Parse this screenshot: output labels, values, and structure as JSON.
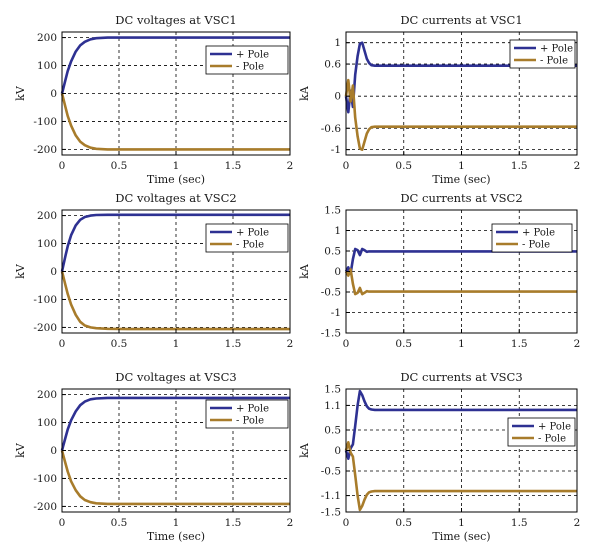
{
  "figure": {
    "background": "#ffffff"
  },
  "style": {
    "pos_color": "#2e3192",
    "neg_color": "#a87c2b",
    "grid_color": "#000000"
  },
  "chart_data": [
    {
      "type": "line",
      "title": "DC voltages at VSC1",
      "xlabel": "Time (sec)",
      "ylabel": "kV",
      "xlim": [
        0,
        2
      ],
      "ylim": [
        -220,
        220
      ],
      "xticks": [
        0,
        0.5,
        1,
        1.5,
        2
      ],
      "xtick_labels": [
        "0",
        "0.5",
        "1",
        "1.5",
        "2"
      ],
      "yticks": [
        -200,
        -100,
        0,
        100,
        200
      ],
      "ytick_labels": [
        "-200",
        "-100",
        "0",
        "100",
        "200"
      ],
      "grid": true,
      "legend": "top-right",
      "series": [
        {
          "name": "+ Pole",
          "x": [
            0,
            0.01,
            0.03,
            0.05,
            0.08,
            0.12,
            0.16,
            0.2,
            0.25,
            0.3,
            0.4,
            0.6,
            1.0,
            1.5,
            2.0
          ],
          "y": [
            0,
            15,
            48,
            80,
            115,
            150,
            172,
            185,
            194,
            198,
            200,
            200,
            200,
            200,
            200
          ]
        },
        {
          "name": "- Pole",
          "x": [
            0,
            0.01,
            0.03,
            0.05,
            0.08,
            0.12,
            0.16,
            0.2,
            0.25,
            0.3,
            0.4,
            0.6,
            1.0,
            1.5,
            2.0
          ],
          "y": [
            0,
            -15,
            -48,
            -80,
            -115,
            -150,
            -172,
            -185,
            -194,
            -198,
            -200,
            -200,
            -200,
            -200,
            -200
          ]
        }
      ]
    },
    {
      "type": "line",
      "title": "DC currents at VSC1",
      "xlabel": "Time (sec)",
      "ylabel": "kA",
      "xlim": [
        0,
        2
      ],
      "ylim": [
        -1.1,
        1.2
      ],
      "xticks": [
        0,
        0.5,
        1,
        1.5,
        2
      ],
      "xtick_labels": [
        "0",
        "0.5",
        "1",
        "1.5",
        "2"
      ],
      "yticks": [
        -1,
        -0.6,
        0,
        0.6,
        1
      ],
      "ytick_labels": [
        "-1",
        "-0.6",
        "0",
        "0.6",
        "1"
      ],
      "grid": true,
      "legend": "top-right",
      "series": [
        {
          "name": "+ Pole",
          "x": [
            0,
            0.02,
            0.04,
            0.06,
            0.08,
            0.1,
            0.12,
            0.14,
            0.16,
            0.18,
            0.2,
            0.22,
            0.25,
            0.3,
            0.4,
            1.0,
            2.0
          ],
          "y": [
            0,
            -0.3,
            0.1,
            -0.2,
            0.4,
            0.75,
            0.98,
            1.0,
            0.85,
            0.7,
            0.62,
            0.58,
            0.57,
            0.57,
            0.57,
            0.57,
            0.57
          ]
        },
        {
          "name": "- Pole",
          "x": [
            0,
            0.02,
            0.04,
            0.06,
            0.08,
            0.1,
            0.12,
            0.14,
            0.16,
            0.18,
            0.2,
            0.22,
            0.25,
            0.3,
            0.4,
            1.0,
            2.0
          ],
          "y": [
            0,
            0.3,
            -0.1,
            0.2,
            -0.4,
            -0.75,
            -0.98,
            -1.0,
            -0.85,
            -0.7,
            -0.62,
            -0.58,
            -0.57,
            -0.57,
            -0.57,
            -0.57,
            -0.57
          ]
        }
      ]
    },
    {
      "type": "line",
      "title": "DC voltages at VSC2",
      "xlabel": "",
      "ylabel": "kV",
      "xlim": [
        0,
        2
      ],
      "ylim": [
        -220,
        220
      ],
      "xticks": [
        0,
        0.5,
        1,
        1.5,
        2
      ],
      "xtick_labels": [
        "0",
        "0.5",
        "1",
        "1.5",
        "2"
      ],
      "yticks": [
        -200,
        -100,
        0,
        100,
        200
      ],
      "ytick_labels": [
        "-200",
        "-100",
        "0",
        "100",
        "200"
      ],
      "grid": true,
      "legend": "top-right",
      "series": [
        {
          "name": "+ Pole",
          "x": [
            0,
            0.01,
            0.03,
            0.05,
            0.08,
            0.12,
            0.16,
            0.2,
            0.25,
            0.3,
            0.4,
            0.6,
            1.0,
            1.5,
            2.0
          ],
          "y": [
            0,
            18,
            55,
            90,
            130,
            165,
            185,
            195,
            200,
            202,
            203,
            203,
            203,
            203,
            203
          ]
        },
        {
          "name": "- Pole",
          "x": [
            0,
            0.01,
            0.03,
            0.05,
            0.08,
            0.12,
            0.16,
            0.2,
            0.25,
            0.3,
            0.4,
            0.6,
            1.0,
            1.5,
            2.0
          ],
          "y": [
            0,
            -15,
            -48,
            -80,
            -118,
            -155,
            -180,
            -193,
            -200,
            -203,
            -205,
            -206,
            -206,
            -206,
            -206
          ]
        }
      ]
    },
    {
      "type": "line",
      "title": "DC currents at VSC2",
      "xlabel": "",
      "ylabel": "kA",
      "xlim": [
        0,
        2
      ],
      "ylim": [
        -1.5,
        1.5
      ],
      "xticks": [
        0,
        0.5,
        1,
        1.5,
        2
      ],
      "xtick_labels": [
        "0",
        "0.5",
        "1",
        "1.5",
        "2"
      ],
      "yticks": [
        -1.5,
        -1,
        -0.5,
        0,
        0.5,
        1,
        1.5
      ],
      "ytick_labels": [
        "-1.5",
        "-1",
        "-0.5",
        "0",
        "0.5",
        "1",
        "1.5"
      ],
      "grid": true,
      "legend": "top-right",
      "series": [
        {
          "name": "+ Pole",
          "x": [
            0,
            0.02,
            0.04,
            0.06,
            0.08,
            0.1,
            0.12,
            0.14,
            0.16,
            0.18,
            0.2,
            0.3,
            1.0,
            2.0
          ],
          "y": [
            0,
            0.1,
            -0.05,
            0.3,
            0.55,
            0.52,
            0.4,
            0.55,
            0.52,
            0.48,
            0.49,
            0.49,
            0.49,
            0.49
          ]
        },
        {
          "name": "- Pole",
          "x": [
            0,
            0.02,
            0.04,
            0.06,
            0.08,
            0.1,
            0.12,
            0.14,
            0.16,
            0.18,
            0.2,
            0.3,
            1.0,
            2.0
          ],
          "y": [
            0,
            -0.1,
            0.05,
            -0.3,
            -0.55,
            -0.52,
            -0.4,
            -0.55,
            -0.52,
            -0.48,
            -0.49,
            -0.49,
            -0.49,
            -0.49
          ]
        }
      ]
    },
    {
      "type": "line",
      "title": "DC voltages at VSC3",
      "xlabel": "Time (sec)",
      "ylabel": "kV",
      "xlim": [
        0,
        2
      ],
      "ylim": [
        -220,
        220
      ],
      "xticks": [
        0,
        0.5,
        1,
        1.5,
        2
      ],
      "xtick_labels": [
        "0",
        "0.5",
        "1",
        "1.5",
        "2"
      ],
      "yticks": [
        -200,
        -100,
        0,
        100,
        200
      ],
      "ytick_labels": [
        "-200",
        "-100",
        "0",
        "100",
        "200"
      ],
      "grid": true,
      "legend": "top-right",
      "series": [
        {
          "name": "+ Pole",
          "x": [
            0,
            0.01,
            0.03,
            0.05,
            0.08,
            0.12,
            0.16,
            0.2,
            0.25,
            0.3,
            0.4,
            0.6,
            1.0,
            1.5,
            2.0
          ],
          "y": [
            0,
            15,
            45,
            75,
            108,
            140,
            162,
            175,
            183,
            186,
            188,
            188,
            188,
            188,
            188
          ]
        },
        {
          "name": "- Pole",
          "x": [
            0,
            0.01,
            0.03,
            0.05,
            0.08,
            0.12,
            0.16,
            0.2,
            0.25,
            0.3,
            0.4,
            0.6,
            1.0,
            1.5,
            2.0
          ],
          "y": [
            0,
            -15,
            -45,
            -75,
            -110,
            -142,
            -164,
            -177,
            -185,
            -189,
            -191,
            -191,
            -191,
            -191,
            -191
          ]
        }
      ]
    },
    {
      "type": "line",
      "title": "DC currents at VSC3",
      "xlabel": "Time (sec)",
      "ylabel": "kA",
      "xlim": [
        0,
        2
      ],
      "ylim": [
        -1.5,
        1.5
      ],
      "xticks": [
        0,
        0.5,
        1,
        1.5,
        2
      ],
      "xtick_labels": [
        "0",
        "0.5",
        "1",
        "1.5",
        "2"
      ],
      "yticks": [
        -1.5,
        -1.1,
        -0.5,
        0,
        0.5,
        1.1,
        1.5
      ],
      "ytick_labels": [
        "-1.5",
        "-1.1",
        "-0.5",
        "0",
        "0.5",
        "1.1",
        "1.5"
      ],
      "grid": true,
      "legend": "middle-right",
      "series": [
        {
          "name": "+ Pole",
          "x": [
            0,
            0.02,
            0.04,
            0.06,
            0.08,
            0.1,
            0.12,
            0.14,
            0.16,
            0.18,
            0.2,
            0.22,
            0.25,
            0.3,
            0.4,
            1.0,
            2.0
          ],
          "y": [
            0,
            -0.2,
            0.05,
            0.15,
            0.6,
            1.1,
            1.45,
            1.35,
            1.2,
            1.08,
            1.02,
            1.0,
            0.99,
            0.99,
            0.99,
            0.99,
            0.99
          ]
        },
        {
          "name": "- Pole",
          "x": [
            0,
            0.02,
            0.04,
            0.06,
            0.08,
            0.1,
            0.12,
            0.14,
            0.16,
            0.18,
            0.2,
            0.22,
            0.25,
            0.3,
            0.4,
            1.0,
            2.0
          ],
          "y": [
            0,
            0.2,
            -0.05,
            -0.15,
            -0.6,
            -1.1,
            -1.45,
            -1.35,
            -1.2,
            -1.08,
            -1.02,
            -1.0,
            -0.99,
            -0.99,
            -0.99,
            -0.99,
            -0.99
          ]
        }
      ]
    }
  ]
}
